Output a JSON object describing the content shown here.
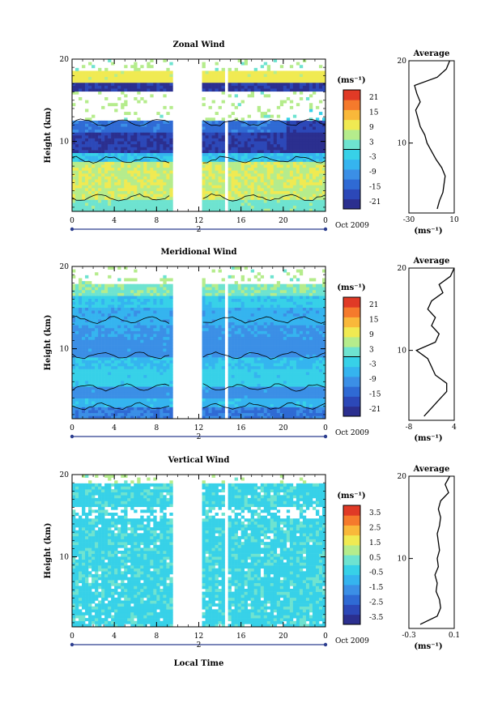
{
  "colors": {
    "cmap": [
      "#2b2f8f",
      "#2c48b8",
      "#2f6ad4",
      "#3b8fe6",
      "#35b4ef",
      "#37d1e8",
      "#6ee3d0",
      "#b5ec8c",
      "#f0ea52",
      "#f9b83a",
      "#f57a2c",
      "#e03a26"
    ],
    "contour": "#000000",
    "timeline": "#2c3e8f"
  },
  "x_ticks": [
    "0",
    "4",
    "8",
    "12",
    "16",
    "20",
    "0"
  ],
  "date_mid_label": "2",
  "date_right_label": "Oct 2009",
  "x_axis_label": "Local Time",
  "y_axis_label": "Height (km)",
  "unit_label": "(ms⁻¹)",
  "average_title": "Average",
  "panels": [
    {
      "key": "zonal",
      "title": "Zonal Wind",
      "y_ticks": [
        "20",
        "10"
      ],
      "colorbar_labels": [
        "21",
        "15",
        "9",
        "3",
        "-3",
        "-9",
        "-15",
        "-21"
      ],
      "colorbar_range": [
        -24,
        24
      ],
      "avg_x_ticks": [
        "-30",
        "10"
      ],
      "avg_xlim": [
        -30,
        10
      ]
    },
    {
      "key": "meridional",
      "title": "Meridional Wind",
      "y_ticks": [
        "20",
        "10"
      ],
      "colorbar_labels": [
        "21",
        "15",
        "9",
        "3",
        "-3",
        "-9",
        "-15",
        "-21"
      ],
      "colorbar_range": [
        -24,
        24
      ],
      "avg_x_ticks": [
        "-8",
        "4"
      ],
      "avg_xlim": [
        -8,
        4
      ]
    },
    {
      "key": "vertical",
      "title": "Vertical Wind",
      "y_ticks": [
        "20",
        "10"
      ],
      "colorbar_labels": [
        "3.5",
        "2.5",
        "1.5",
        "0.5",
        "-0.5",
        "-1.5",
        "-2.5",
        "-3.5"
      ],
      "colorbar_range": [
        -4,
        4
      ],
      "avg_x_ticks": [
        "-0.3",
        "0.1"
      ],
      "avg_xlim": [
        -0.3,
        0.1
      ]
    }
  ],
  "chart_data": [
    {
      "type": "heatmap",
      "title": "Zonal Wind",
      "xlabel": "Local Time",
      "ylabel": "Height (km)",
      "x_ticks": [
        "0",
        "4",
        "8",
        "12",
        "16",
        "20",
        "0"
      ],
      "ylim": [
        1.5,
        20
      ],
      "zlim": [
        -24,
        24
      ],
      "data_gaps_local_time": [
        [
          9.5,
          12.0
        ]
      ],
      "inset": {
        "type": "line",
        "title": "Average",
        "xlabel": "(ms⁻¹)",
        "xlim": [
          -30,
          10
        ],
        "heights": [
          2,
          3,
          4,
          5,
          6,
          7,
          8,
          9,
          10,
          11,
          12,
          13,
          14,
          15,
          16,
          17,
          18,
          19,
          20
        ],
        "values": [
          -5,
          -3,
          0,
          1,
          2,
          -1,
          -6,
          -10,
          -14,
          -16,
          -20,
          -22,
          -24,
          -20,
          -23,
          -25,
          -5,
          3,
          6
        ]
      }
    },
    {
      "type": "heatmap",
      "title": "Meridional Wind",
      "xlabel": "Local Time",
      "ylabel": "Height (km)",
      "x_ticks": [
        "0",
        "4",
        "8",
        "12",
        "16",
        "20",
        "0"
      ],
      "ylim": [
        1.5,
        20
      ],
      "zlim": [
        -24,
        24
      ],
      "data_gaps_local_time": [
        [
          9.5,
          12.0
        ]
      ],
      "inset": {
        "type": "line",
        "title": "Average",
        "xlabel": "(ms⁻¹)",
        "xlim": [
          -8,
          4
        ],
        "heights": [
          2,
          3,
          4,
          5,
          6,
          7,
          8,
          9,
          10,
          11,
          12,
          13,
          14,
          15,
          16,
          17,
          18,
          19,
          20
        ],
        "values": [
          -4,
          -2,
          0,
          2,
          2,
          -1,
          -2,
          -3,
          -6,
          -1,
          0,
          -2,
          -1,
          -3,
          -2,
          1,
          0,
          3,
          4
        ]
      }
    },
    {
      "type": "heatmap",
      "title": "Vertical Wind",
      "xlabel": "Local Time",
      "ylabel": "Height (km)",
      "x_ticks": [
        "0",
        "4",
        "8",
        "12",
        "16",
        "20",
        "0"
      ],
      "ylim": [
        1.5,
        20
      ],
      "zlim": [
        -4,
        4
      ],
      "data_gaps_local_time": [
        [
          9.5,
          12.0
        ]
      ],
      "inset": {
        "type": "line",
        "title": "Average",
        "xlabel": "(ms⁻¹)",
        "xlim": [
          -0.3,
          0.1
        ],
        "heights": [
          2,
          3,
          4,
          5,
          6,
          7,
          8,
          9,
          10,
          11,
          12,
          13,
          14,
          15,
          16,
          17,
          18,
          19,
          20
        ],
        "values": [
          -0.2,
          -0.05,
          -0.02,
          -0.03,
          -0.06,
          -0.05,
          -0.07,
          -0.04,
          -0.05,
          -0.03,
          -0.04,
          -0.05,
          -0.03,
          -0.02,
          -0.04,
          -0.02,
          0.05,
          0.02,
          0.06
        ]
      }
    }
  ]
}
